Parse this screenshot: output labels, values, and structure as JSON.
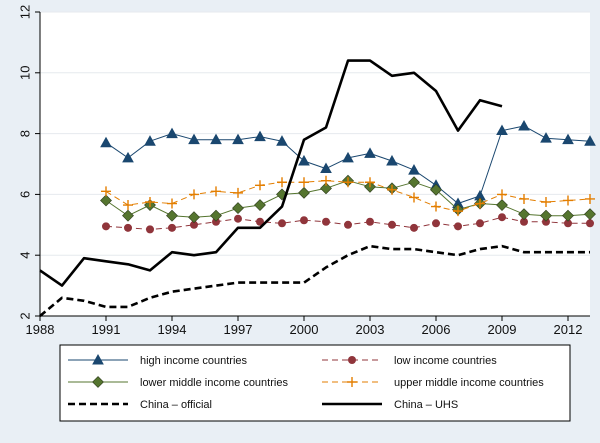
{
  "chart_data": {
    "type": "line",
    "title": "",
    "xlabel": "",
    "ylabel": "",
    "xlim": [
      1988,
      2013
    ],
    "ylim": [
      2,
      12
    ],
    "grid": "horizontal",
    "legend_position": "bottom",
    "x_ticks": [
      "1988",
      "1991",
      "1994",
      "1997",
      "2000",
      "2003",
      "2006",
      "2009",
      "2012"
    ],
    "y_ticks": [
      "2",
      "4",
      "6",
      "8",
      "10",
      "12"
    ],
    "series": [
      {
        "name": "high income countries",
        "color": "#1a476f",
        "style": "solid",
        "marker": "triangle",
        "x": [
          1991,
          1992,
          1993,
          1994,
          1995,
          1996,
          1997,
          1998,
          1999,
          2000,
          2001,
          2002,
          2003,
          2004,
          2005,
          2006,
          2007,
          2008,
          2009,
          2010,
          2011,
          2012,
          2013
        ],
        "y": [
          7.7,
          7.2,
          7.75,
          8.0,
          7.8,
          7.8,
          7.8,
          7.9,
          7.75,
          7.1,
          6.85,
          7.2,
          7.35,
          7.1,
          6.8,
          6.3,
          5.7,
          5.95,
          8.1,
          8.25,
          7.85,
          7.8,
          7.75
        ]
      },
      {
        "name": "low income countries",
        "color": "#90353b",
        "style": "dash",
        "marker": "circle",
        "x": [
          1991,
          1992,
          1993,
          1994,
          1995,
          1996,
          1997,
          1998,
          1999,
          2000,
          2001,
          2002,
          2003,
          2004,
          2005,
          2006,
          2007,
          2008,
          2009,
          2010,
          2011,
          2012,
          2013
        ],
        "y": [
          4.95,
          4.9,
          4.85,
          4.9,
          5.0,
          5.1,
          5.2,
          5.1,
          5.05,
          5.15,
          5.1,
          5.0,
          5.1,
          5.0,
          4.9,
          5.05,
          4.95,
          5.05,
          5.25,
          5.1,
          5.1,
          5.05,
          5.05
        ]
      },
      {
        "name": "lower middle income countries",
        "color": "#55752f",
        "style": "solid",
        "marker": "diamond",
        "x": [
          1991,
          1992,
          1993,
          1994,
          1995,
          1996,
          1997,
          1998,
          1999,
          2000,
          2001,
          2002,
          2003,
          2004,
          2005,
          2006,
          2007,
          2008,
          2009,
          2010,
          2011,
          2012,
          2013
        ],
        "y": [
          5.8,
          5.3,
          5.65,
          5.3,
          5.25,
          5.3,
          5.55,
          5.65,
          6.0,
          6.05,
          6.2,
          6.45,
          6.25,
          6.2,
          6.4,
          6.15,
          5.5,
          5.7,
          5.65,
          5.35,
          5.3,
          5.3,
          5.35
        ]
      },
      {
        "name": "upper middle income countries",
        "color": "#e37e00",
        "style": "dash",
        "marker": "plus",
        "x": [
          1991,
          1992,
          1993,
          1994,
          1995,
          1996,
          1997,
          1998,
          1999,
          2000,
          2001,
          2002,
          2003,
          2004,
          2005,
          2006,
          2007,
          2008,
          2009,
          2010,
          2011,
          2012,
          2013
        ],
        "y": [
          6.1,
          5.65,
          5.75,
          5.7,
          6.0,
          6.1,
          6.05,
          6.3,
          6.4,
          6.4,
          6.45,
          6.4,
          6.4,
          6.15,
          5.9,
          5.6,
          5.45,
          5.7,
          6.0,
          5.85,
          5.75,
          5.8,
          5.85
        ]
      },
      {
        "name": "China – official",
        "color": "#000000",
        "style": "dash-bold",
        "marker": "none",
        "x": [
          1988,
          1989,
          1990,
          1991,
          1992,
          1993,
          1994,
          1995,
          1996,
          1997,
          1998,
          1999,
          2000,
          2001,
          2002,
          2003,
          2004,
          2005,
          2006,
          2007,
          2008,
          2009,
          2010,
          2011,
          2012,
          2013
        ],
        "y": [
          2.0,
          2.6,
          2.5,
          2.3,
          2.3,
          2.6,
          2.8,
          2.9,
          3.0,
          3.1,
          3.1,
          3.1,
          3.1,
          3.6,
          4.0,
          4.3,
          4.2,
          4.2,
          4.1,
          4.0,
          4.2,
          4.3,
          4.1,
          4.1,
          4.1,
          4.1
        ]
      },
      {
        "name": "China – UHS",
        "color": "#000000",
        "style": "solid-bold",
        "marker": "none",
        "x": [
          1988,
          1989,
          1990,
          1991,
          1992,
          1993,
          1994,
          1995,
          1996,
          1997,
          1998,
          1999,
          2000,
          2001,
          2002,
          2003,
          2004,
          2005,
          2006,
          2007,
          2008,
          2009
        ],
        "y": [
          3.5,
          3.0,
          3.9,
          3.8,
          3.7,
          3.5,
          4.1,
          4.0,
          4.1,
          4.9,
          4.9,
          5.6,
          7.8,
          8.2,
          10.4,
          10.4,
          9.9,
          10.0,
          9.4,
          8.1,
          9.1,
          8.9
        ]
      }
    ]
  }
}
